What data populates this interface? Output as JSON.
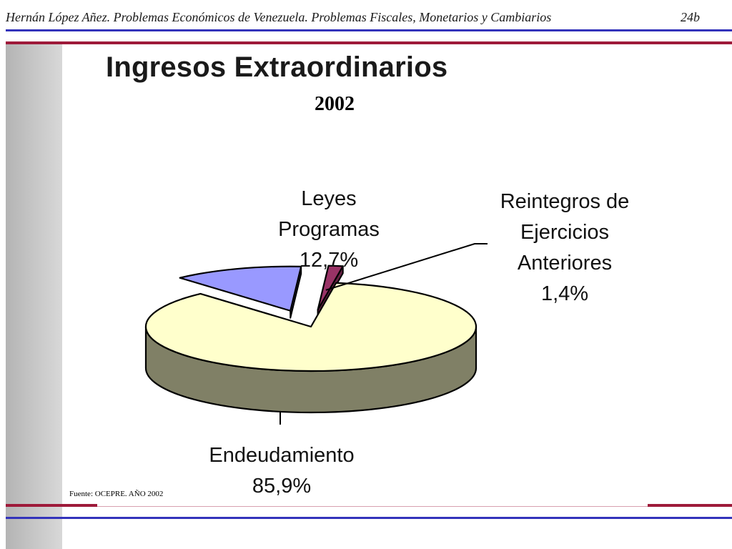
{
  "header": {
    "title": "Hernán López Añez. Problemas Económicos de Venezuela. Problemas Fiscales, Monetarios y Cambiarios",
    "page_number": "24b"
  },
  "colors": {
    "rule_blue": "#3333bb",
    "rule_red": "#9e1a3a",
    "slice_endeudamiento_top": "#ffffcc",
    "slice_endeudamiento_side": "#808066",
    "slice_leyes_top": "#9999ff",
    "slice_leyes_side": "#55559a",
    "slice_reintegros_top": "#993366",
    "slice_reintegros_side": "#662244"
  },
  "chart_data": {
    "type": "pie",
    "three_d": true,
    "title": "Ingresos Extraordinarios",
    "subtitle": "2002",
    "slices": [
      {
        "label_lines": [
          "Leyes",
          "Programas",
          "12,7%"
        ],
        "value": 12.7,
        "exploded": true
      },
      {
        "label_lines": [
          "Reintegros de",
          "Ejercicios",
          "Anteriores",
          "1,4%"
        ],
        "value": 1.4,
        "exploded": true
      },
      {
        "label_lines": [
          "Endeudamiento",
          "85,9%"
        ],
        "value": 85.9,
        "exploded": false
      }
    ],
    "source": "Fuente: OCEPRE. AÑO 2002"
  }
}
